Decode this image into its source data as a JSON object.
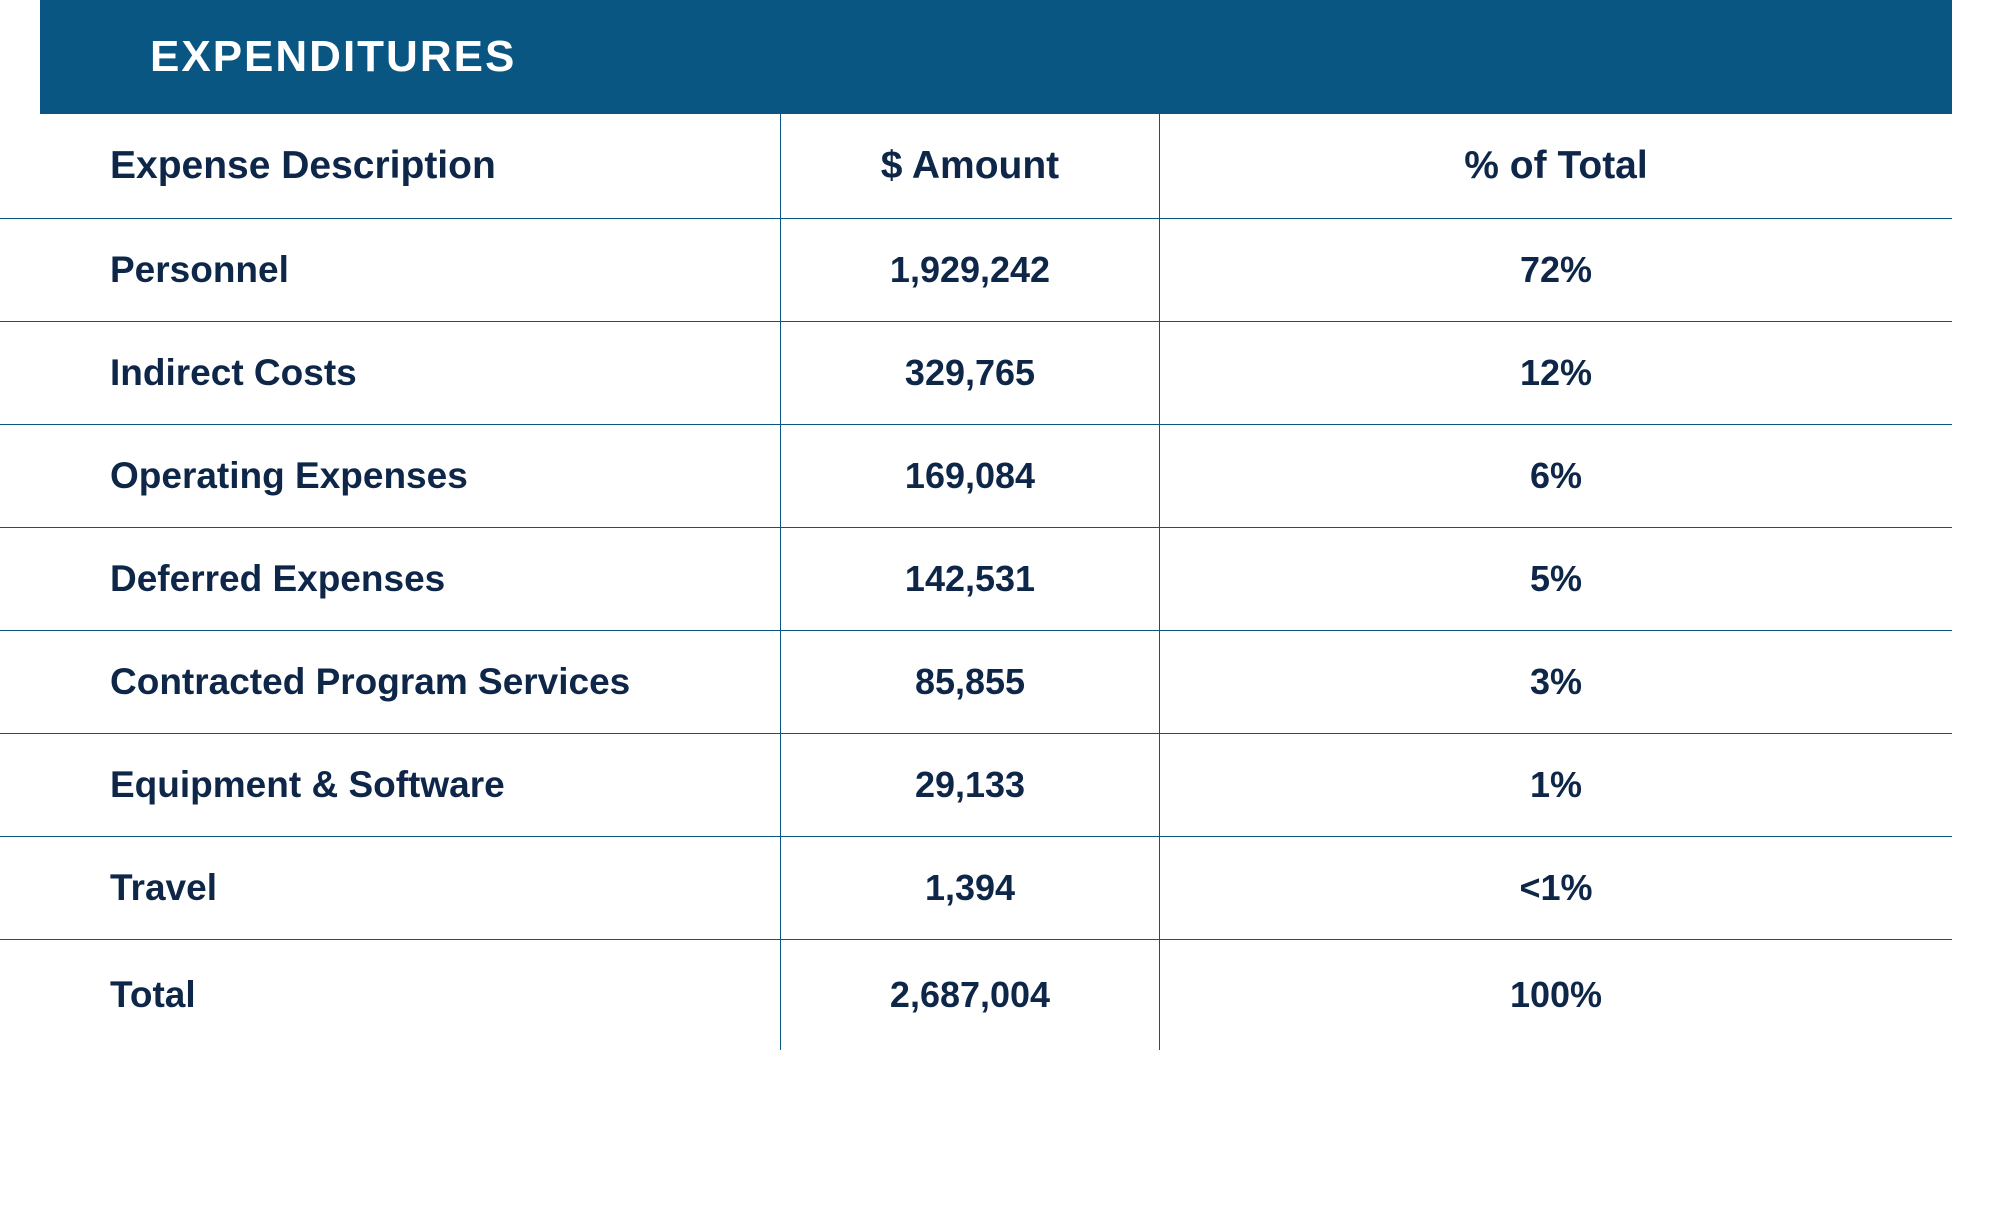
{
  "title": "EXPENDITURES",
  "columns": [
    "Expense Description",
    "$ Amount",
    "% of Total"
  ],
  "rows": [
    {
      "description": "Personnel",
      "amount": "1,929,242",
      "percent": "72%"
    },
    {
      "description": "Indirect Costs",
      "amount": "329,765",
      "percent": "12%"
    },
    {
      "description": "Operating Expenses",
      "amount": "169,084",
      "percent": "6%"
    },
    {
      "description": "Deferred Expenses",
      "amount": "142,531",
      "percent": "5%"
    },
    {
      "description": "Contracted Program Services",
      "amount": "85,855",
      "percent": "3%"
    },
    {
      "description": "Equipment & Software",
      "amount": "29,133",
      "percent": "1%"
    },
    {
      "description": "Travel",
      "amount": "1,394",
      "percent": "<1%"
    },
    {
      "description": "Total",
      "amount": "2,687,004",
      "percent": "100%"
    }
  ],
  "colors": {
    "header_bg": "#0a5683",
    "header_text": "#ffffff",
    "text": "#0e2749",
    "border": "#0a5683",
    "background": "#ffffff"
  },
  "typography": {
    "title_fontsize": 44,
    "header_fontsize": 39,
    "body_fontsize": 37,
    "font_weight": 700
  }
}
